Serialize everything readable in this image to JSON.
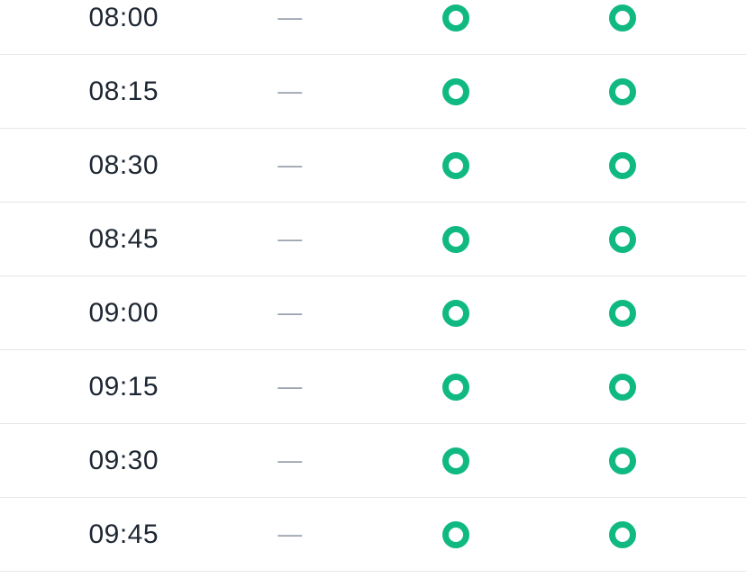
{
  "colors": {
    "ring_green": "#10b981",
    "time_text": "#1d2733",
    "dash_gray": "#9aa3ae",
    "divider": "#e6e7eb"
  },
  "icons": {
    "availability": "ring-circle-icon",
    "availability_meaning": "available-slot"
  },
  "table": {
    "rows": [
      {
        "time": "08:00",
        "status": "—",
        "col_a": "ring",
        "col_b": "ring"
      },
      {
        "time": "08:15",
        "status": "—",
        "col_a": "ring",
        "col_b": "ring"
      },
      {
        "time": "08:30",
        "status": "—",
        "col_a": "ring",
        "col_b": "ring"
      },
      {
        "time": "08:45",
        "status": "—",
        "col_a": "ring",
        "col_b": "ring"
      },
      {
        "time": "09:00",
        "status": "—",
        "col_a": "ring",
        "col_b": "ring"
      },
      {
        "time": "09:15",
        "status": "—",
        "col_a": "ring",
        "col_b": "ring"
      },
      {
        "time": "09:30",
        "status": "—",
        "col_a": "ring",
        "col_b": "ring"
      },
      {
        "time": "09:45",
        "status": "—",
        "col_a": "ring",
        "col_b": "ring"
      }
    ]
  }
}
